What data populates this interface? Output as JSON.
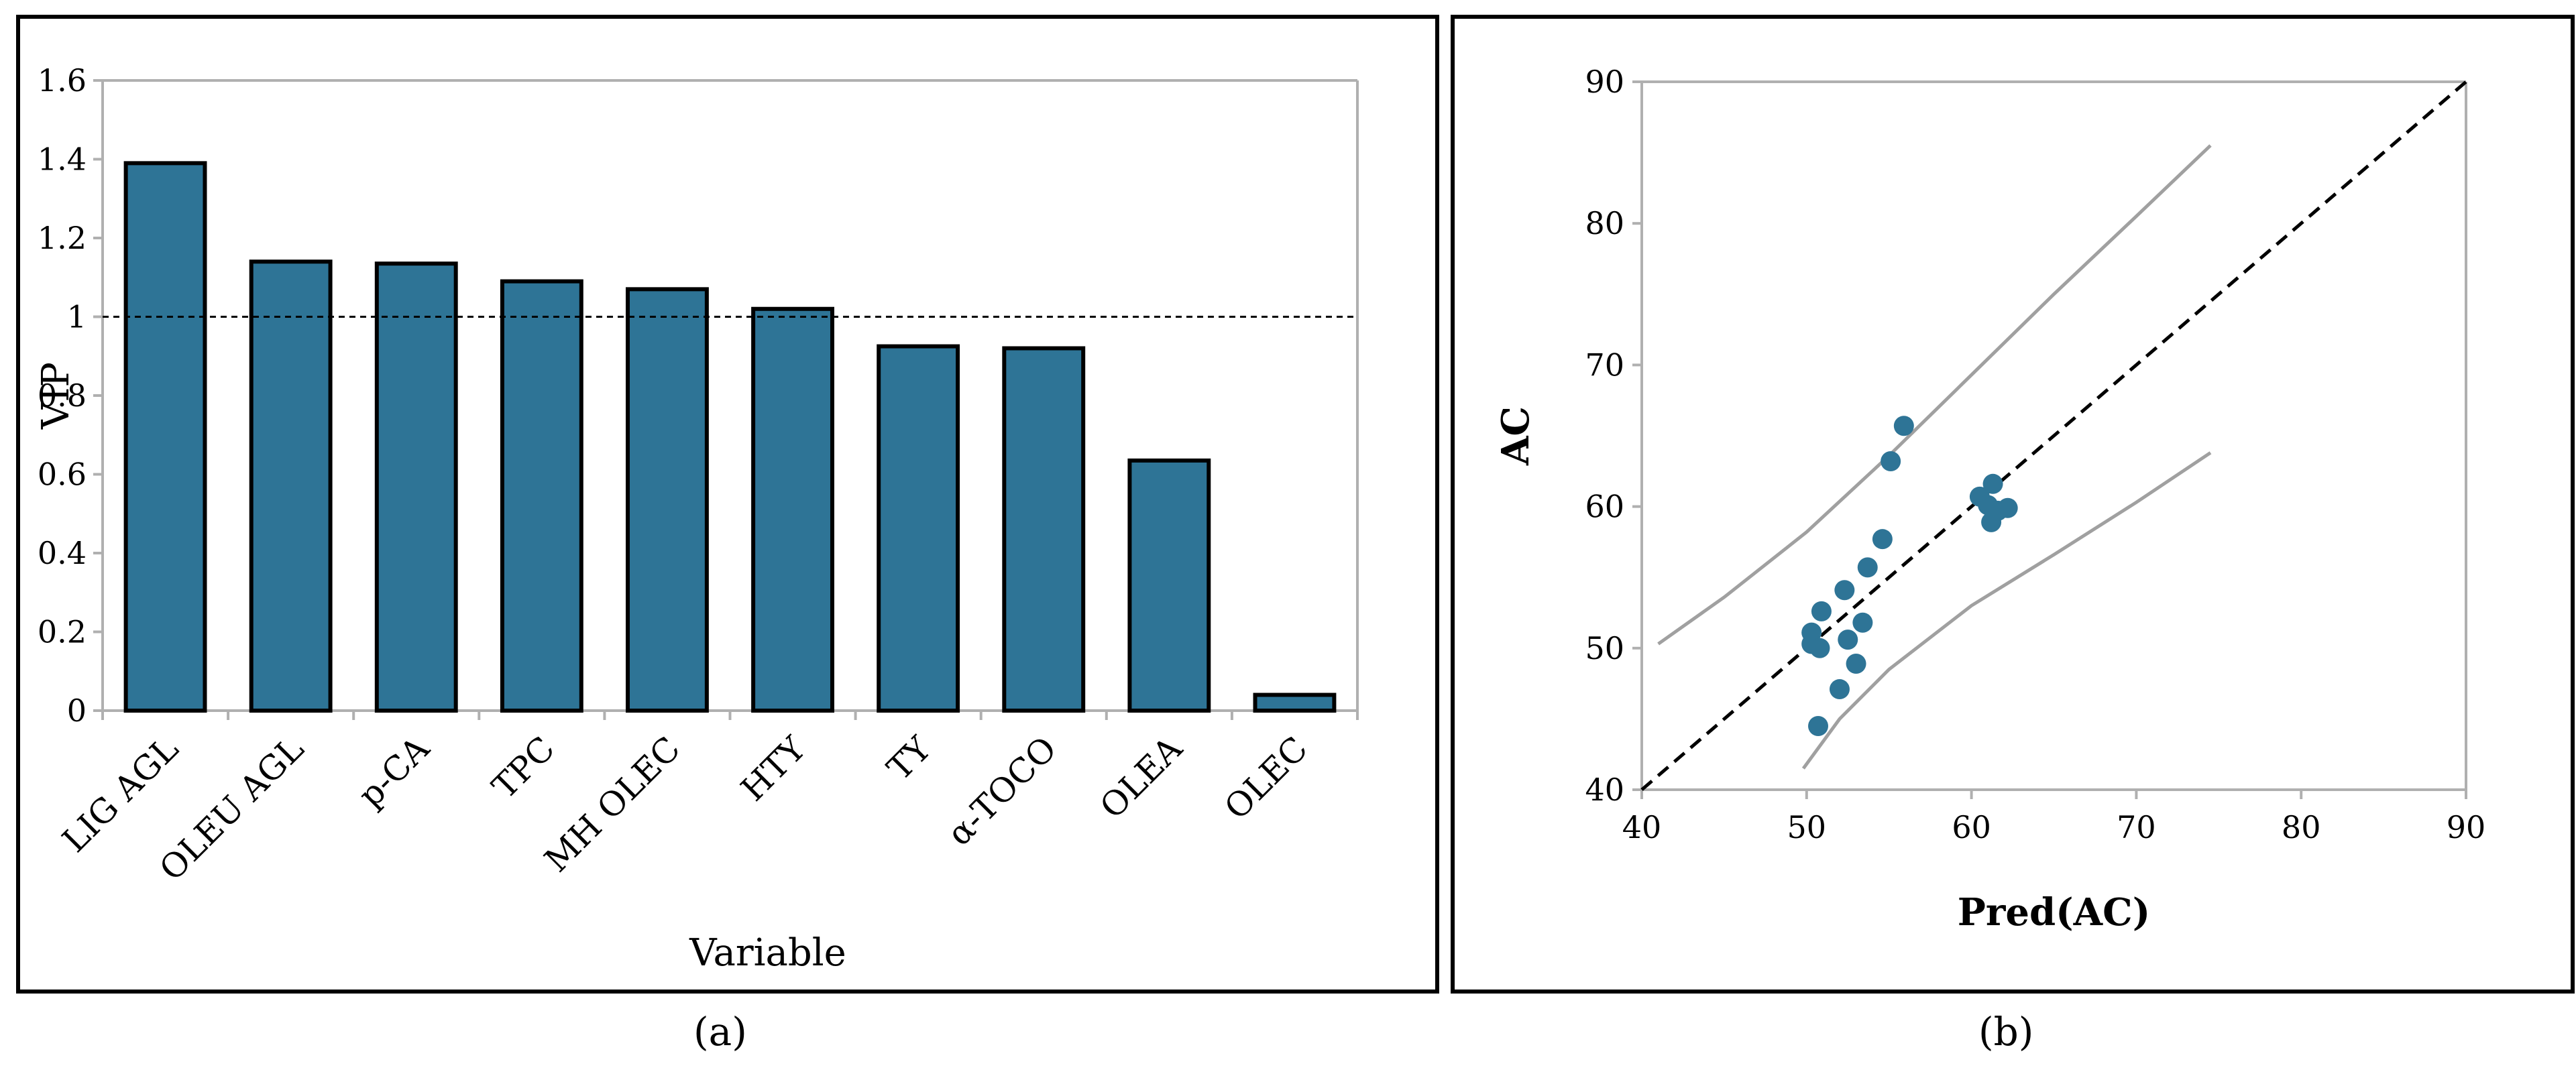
{
  "captions": {
    "a": "(a)",
    "b": "(b)"
  },
  "chart_data": [
    {
      "type": "bar",
      "xlabel": "Variable",
      "ylabel": "VIP",
      "ylim": [
        0,
        1.6
      ],
      "yticks": [
        "0",
        "0.2",
        "0.4",
        "0.6",
        "0.8",
        "1",
        "1.2",
        "1.4",
        "1.6"
      ],
      "categories": [
        "LIG AGL",
        "OLEU AGL",
        "p-CA",
        "TPC",
        "MH OLEC",
        "HTY",
        "TY",
        "α-TOCO",
        "OLEA",
        "OLEC"
      ],
      "values": [
        1.39,
        1.14,
        1.135,
        1.09,
        1.07,
        1.02,
        0.925,
        0.92,
        0.635,
        0.04
      ],
      "reference_line": {
        "y": 1,
        "style": "dashed"
      },
      "bar_color": "#2E7496",
      "grid": false
    },
    {
      "type": "scatter",
      "xlabel": "Pred(AC)",
      "ylabel": "AC",
      "xlim": [
        40,
        90
      ],
      "ylim": [
        40,
        90
      ],
      "xticks": [
        "40",
        "50",
        "60",
        "70",
        "80",
        "90"
      ],
      "yticks": [
        "40",
        "50",
        "60",
        "70",
        "80",
        "90"
      ],
      "points": [
        [
          50.3,
          51.1
        ],
        [
          50.3,
          50.3
        ],
        [
          50.8,
          50.0
        ],
        [
          50.9,
          52.6
        ],
        [
          50.7,
          44.5
        ],
        [
          52.0,
          47.1
        ],
        [
          52.3,
          54.1
        ],
        [
          52.5,
          50.6
        ],
        [
          53.0,
          48.9
        ],
        [
          53.4,
          51.8
        ],
        [
          53.7,
          55.7
        ],
        [
          54.6,
          57.7
        ],
        [
          55.1,
          63.2
        ],
        [
          55.9,
          65.7
        ],
        [
          60.5,
          60.7
        ],
        [
          61.0,
          60.1
        ],
        [
          61.3,
          61.6
        ],
        [
          61.2,
          58.9
        ],
        [
          61.6,
          59.7
        ],
        [
          62.2,
          59.9
        ]
      ],
      "identity_line": {
        "from": [
          40,
          40
        ],
        "to": [
          90,
          90
        ],
        "style": "dashed"
      },
      "confidence_upper": [
        [
          41.0,
          50.3
        ],
        [
          45,
          53.6
        ],
        [
          50,
          58.2
        ],
        [
          55,
          63.6
        ],
        [
          60,
          69.3
        ],
        [
          65,
          75.0
        ],
        [
          70,
          80.5
        ],
        [
          74.5,
          85.5
        ]
      ],
      "confidence_lower": [
        [
          49.8,
          41.5
        ],
        [
          52,
          45.0
        ],
        [
          55,
          48.5
        ],
        [
          60,
          53.0
        ],
        [
          65,
          56.6
        ],
        [
          70,
          60.3
        ],
        [
          74.5,
          63.8
        ]
      ],
      "point_color": "#2E7496",
      "grid": false
    }
  ]
}
